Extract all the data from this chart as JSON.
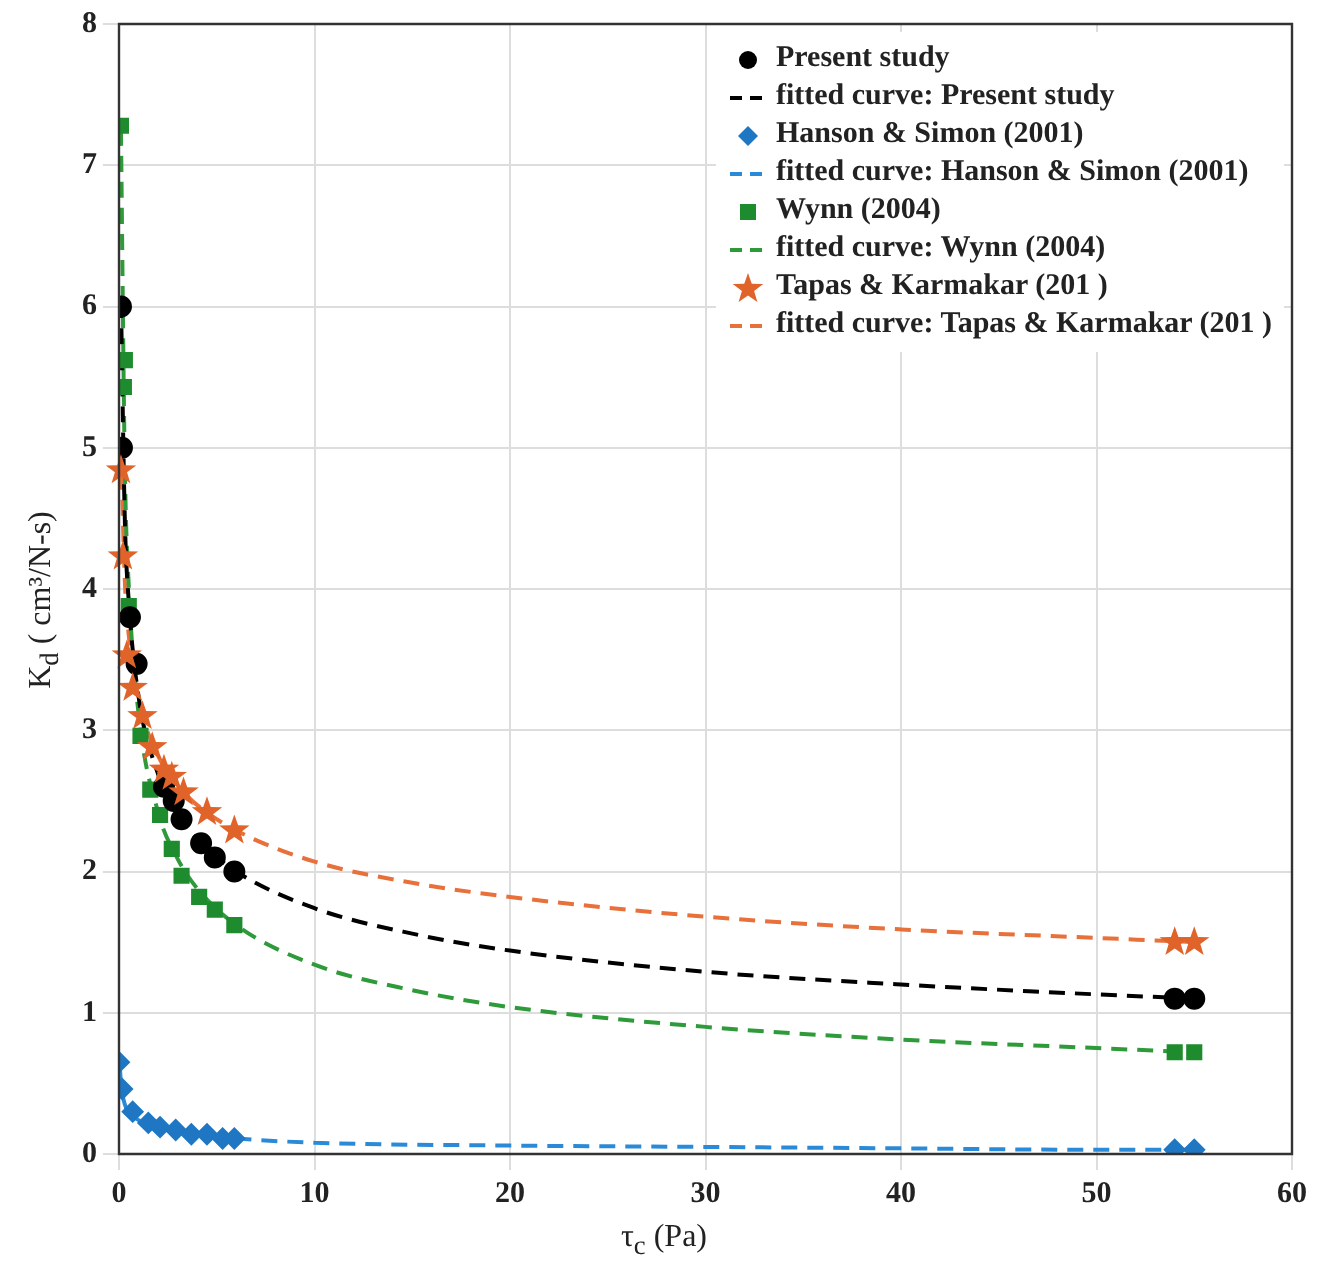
{
  "chart_data": {
    "type": "scatter",
    "xlabel": "τ$_{c}$ (Pa)",
    "ylabel": "K$_{d}$ ( cm³/N-s)",
    "xlim": [
      0,
      60
    ],
    "xticks": [
      0,
      10,
      20,
      30,
      40,
      50,
      60
    ],
    "ylim": [
      0,
      8
    ],
    "yticks": [
      0,
      1,
      2,
      3,
      4,
      5,
      6,
      7,
      8
    ],
    "grid": true,
    "legend": "top right",
    "series": [
      {
        "name": "Present study",
        "type": "scatter",
        "marker": "circle",
        "color": "#000000",
        "x": [
          0.1,
          0.15,
          0.56,
          0.9,
          1.5,
          2.3,
          2.8,
          3.2,
          4.2,
          4.9,
          5.9,
          54,
          55
        ],
        "values": [
          6.0,
          5.0,
          3.8,
          3.47,
          null,
          2.6,
          2.5,
          2.37,
          2.2,
          2.1,
          2.0,
          1.1,
          1.1
        ]
      },
      {
        "name": "fitted curve: Present study",
        "type": "line",
        "line_style": "dashed",
        "marker": "none",
        "color": "#000000",
        "x": [
          0.1,
          0.3,
          0.5,
          1,
          2,
          3,
          4,
          6,
          10,
          15,
          20,
          30,
          40,
          50,
          55
        ],
        "values": [
          6.03,
          4.48,
          3.91,
          3.24,
          2.69,
          2.41,
          2.23,
          2.0,
          1.74,
          1.56,
          1.44,
          1.29,
          1.2,
          1.13,
          1.1
        ]
      },
      {
        "name": "Hanson & Simon (2001)",
        "type": "scatter",
        "marker": "diamond",
        "color": "#1f77c4",
        "x": [
          0,
          0.16,
          0.7,
          1.5,
          2.1,
          2.9,
          3.7,
          4.5,
          5.3,
          5.9,
          54,
          55
        ],
        "values": [
          0.65,
          0.46,
          0.3,
          0.22,
          0.19,
          0.17,
          0.14,
          0.14,
          0.11,
          0.11,
          0.03,
          0.03
        ]
      },
      {
        "name": "fitted curve: Hanson & Simon (2001)",
        "type": "line",
        "line_style": "dashed",
        "marker": "none",
        "color": "#2a8ad8",
        "x": [
          0.05,
          0.1,
          0.3,
          0.5,
          1,
          2,
          3,
          4,
          6,
          10,
          20,
          30,
          40,
          50,
          55
        ],
        "values": [
          0.6,
          0.5,
          0.35,
          0.3,
          0.24,
          0.19,
          0.16,
          0.14,
          0.11,
          0.08,
          0.06,
          0.05,
          0.04,
          0.03,
          0.03
        ]
      },
      {
        "name": "Wynn (2004)",
        "type": "scatter",
        "marker": "square",
        "color": "#1e8c2e",
        "x": [
          0.1,
          0.3,
          0.25,
          0.5,
          1.1,
          1.6,
          2.1,
          2.7,
          3.2,
          4.1,
          4.9,
          5.9,
          54,
          55
        ],
        "values": [
          7.28,
          5.62,
          5.43,
          3.88,
          2.96,
          2.58,
          2.4,
          2.16,
          1.97,
          1.82,
          1.73,
          1.62,
          0.72,
          0.72
        ]
      },
      {
        "name": "fitted curve: Wynn (2004)",
        "type": "line",
        "line_style": "dashed",
        "marker": "none",
        "color": "#2e9a3a",
        "x": [
          0.1,
          0.3,
          0.5,
          1,
          2,
          3,
          4,
          6,
          10,
          15,
          20,
          30,
          40,
          50,
          55
        ],
        "values": [
          7.25,
          4.85,
          4.02,
          3.12,
          2.42,
          2.09,
          1.88,
          1.62,
          1.34,
          1.16,
          1.04,
          0.9,
          0.81,
          0.75,
          0.72
        ]
      },
      {
        "name": "Tapas & Karmakar (201  )",
        "type": "scatter",
        "marker": "star",
        "color": "#e0632a",
        "x": [
          0.1,
          0.2,
          0.4,
          0.7,
          1.2,
          1.7,
          2.3,
          2.7,
          3.3,
          4.5,
          5.9,
          54,
          55
        ],
        "values": [
          4.84,
          4.23,
          3.53,
          3.3,
          3.1,
          2.88,
          2.72,
          2.67,
          2.56,
          2.42,
          2.29,
          1.5,
          1.5
        ]
      },
      {
        "name": "fitted curve: Tapas & Karmakar (201  )",
        "type": "line",
        "line_style": "dashed",
        "marker": "none",
        "color": "#e8703a",
        "x": [
          0.1,
          0.3,
          0.5,
          1,
          2,
          3,
          4,
          6,
          10,
          15,
          20,
          30,
          40,
          50,
          55
        ],
        "values": [
          5.0,
          4.05,
          3.67,
          3.22,
          2.82,
          2.61,
          2.47,
          2.29,
          2.07,
          1.92,
          1.82,
          1.68,
          1.59,
          1.53,
          1.5
        ]
      }
    ]
  }
}
